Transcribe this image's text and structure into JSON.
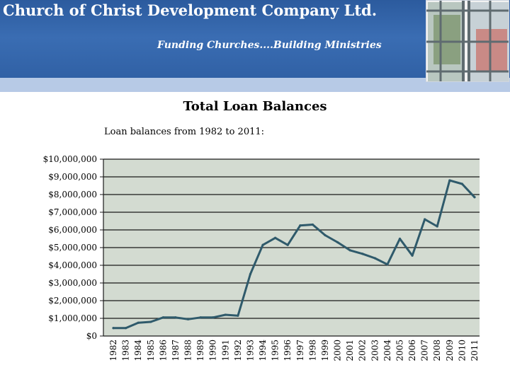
{
  "header": {
    "company_title": "Church of Christ Development Company Ltd.",
    "tagline": "Funding Churches....Building Ministries"
  },
  "colors": {
    "header_blue": "#2f5fa3",
    "header_band": "#b7cae6",
    "plot_background": "#d3dbd1",
    "line": "#2f5a6b"
  },
  "chart_data": {
    "type": "line",
    "title": "Total Loan Balances",
    "subtitle": "Loan balances from 1982 to 2011:",
    "xlabel": "",
    "ylabel": "",
    "ylim": [
      0,
      10000000
    ],
    "grid": true,
    "legend": "none",
    "y_tick_labels": [
      "$0",
      "$1,000,000",
      "$2,000,000",
      "$3,000,000",
      "$4,000,000",
      "$5,000,000",
      "$6,000,000",
      "$7,000,000",
      "$8,000,000",
      "$9,000,000",
      "$10,000,000"
    ],
    "categories": [
      "1982",
      "1983",
      "1984",
      "1985",
      "1986",
      "1987",
      "1988",
      "1989",
      "1990",
      "1991",
      "1992",
      "1993",
      "1994",
      "1995",
      "1996",
      "1997",
      "1998",
      "1999",
      "2000",
      "2001",
      "2002",
      "2003",
      "2004",
      "2005",
      "2006",
      "2007",
      "2008",
      "2009",
      "2010",
      "2011"
    ],
    "series": [
      {
        "values": [
          450000,
          450000,
          750000,
          800000,
          1050000,
          1050000,
          950000,
          1050000,
          1050000,
          1200000,
          1150000,
          3500000,
          5150000,
          5550000,
          5150000,
          6250000,
          6300000,
          5700000,
          5300000,
          4850000,
          4650000,
          4400000,
          4050000,
          5500000,
          4550000,
          6600000,
          6200000,
          8800000,
          8600000,
          7850000
        ]
      }
    ]
  }
}
